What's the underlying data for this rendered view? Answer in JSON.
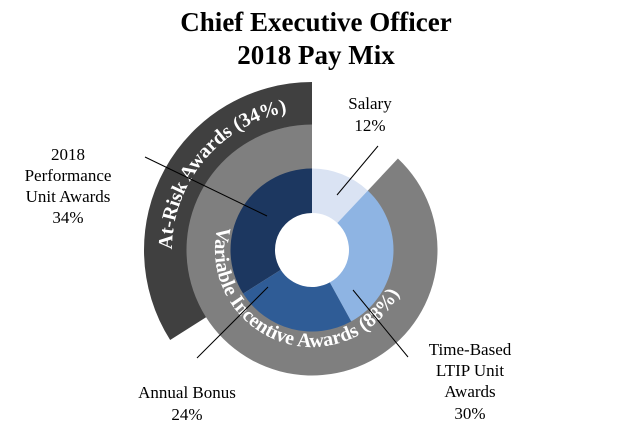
{
  "chart_data": {
    "type": "pie",
    "subtype": "nested-donut",
    "title": [
      "Chief Executive Officer",
      "2018 Pay Mix"
    ],
    "inner_ring": [
      {
        "name": "Salary",
        "value": 12,
        "label": [
          "Salary",
          "12%"
        ],
        "color": "#dae3f3"
      },
      {
        "name": "Time-Based LTIP Unit Awards",
        "value": 30,
        "label": [
          "Time-Based",
          "LTIP Unit",
          "Awards",
          "30%"
        ],
        "color": "#8eb4e3"
      },
      {
        "name": "Annual Bonus",
        "value": 24,
        "label": [
          "Annual Bonus",
          "24%"
        ],
        "color": "#2f5c96"
      },
      {
        "name": "2018 Performance Unit Awards",
        "value": 34,
        "label": [
          "2018",
          "Performance",
          "Unit Awards",
          "34%"
        ],
        "color": "#1c3760"
      }
    ],
    "middle_ring": {
      "name": "Variable Incentive Awards (88%)",
      "value": 88,
      "start_after": 12,
      "color": "#7f7f7f"
    },
    "outer_ring": {
      "name": "At-Risk Awards (34%)",
      "value": 34,
      "start_after": 66,
      "color": "#404040"
    }
  }
}
